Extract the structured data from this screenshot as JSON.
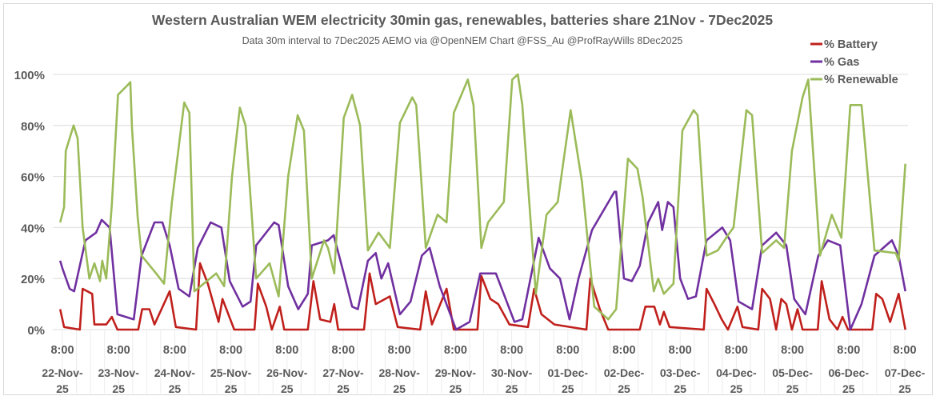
{
  "chart_data": {
    "type": "line",
    "title": "Western Australian WEM electricity 30min gas, renewables, batteries share 21Nov - 7Dec2025",
    "subtitle": "Data 30m interval to 7Dec2025  AEMO via @OpenNEM Chart @FSS_Au @ProfRayWills 8Dec2025",
    "x_unit": "days since 22-Nov-25 8:00",
    "ylim": [
      0,
      100
    ],
    "y_ticks": [
      "0%",
      "20%",
      "40%",
      "60%",
      "80%",
      "100%"
    ],
    "y_tick_values": [
      0,
      20,
      40,
      60,
      80,
      100
    ],
    "x_tick_time": "8:00",
    "x_tick_dates": [
      [
        "22-Nov-",
        "25"
      ],
      [
        "23-Nov-",
        "25"
      ],
      [
        "24-Nov-",
        "25"
      ],
      [
        "25-Nov-",
        "25"
      ],
      [
        "26-Nov-",
        "25"
      ],
      [
        "27-Nov-",
        "25"
      ],
      [
        "28-Nov-",
        "25"
      ],
      [
        "29-Nov-",
        "25"
      ],
      [
        "30-Nov-",
        "25"
      ],
      [
        "01-Dec-",
        "25"
      ],
      [
        "02-Dec-",
        "25"
      ],
      [
        "03-Dec-",
        "25"
      ],
      [
        "04-Dec-",
        "25"
      ],
      [
        "05-Dec-",
        "25"
      ],
      [
        "06-Dec-",
        "25"
      ],
      [
        "07-Dec-",
        "25"
      ]
    ],
    "grid": true,
    "legend_position": "top-right",
    "series": [
      {
        "name": "% Battery",
        "color": "#c0201c",
        "points": [
          [
            -0.04,
            8
          ],
          [
            0.03,
            1
          ],
          [
            0.31,
            0
          ],
          [
            0.36,
            16
          ],
          [
            0.53,
            14
          ],
          [
            0.57,
            2
          ],
          [
            0.78,
            2
          ],
          [
            0.88,
            5
          ],
          [
            0.98,
            0
          ],
          [
            1.35,
            0
          ],
          [
            1.42,
            8
          ],
          [
            1.55,
            8
          ],
          [
            1.64,
            2
          ],
          [
            1.91,
            15
          ],
          [
            2.02,
            1
          ],
          [
            2.38,
            0
          ],
          [
            2.45,
            26
          ],
          [
            2.59,
            18
          ],
          [
            2.78,
            3
          ],
          [
            2.85,
            12
          ],
          [
            3.06,
            0
          ],
          [
            3.42,
            0
          ],
          [
            3.48,
            18
          ],
          [
            3.63,
            9
          ],
          [
            3.73,
            0
          ],
          [
            3.87,
            9
          ],
          [
            3.95,
            0
          ],
          [
            4.37,
            0
          ],
          [
            4.47,
            19
          ],
          [
            4.59,
            4
          ],
          [
            4.77,
            3
          ],
          [
            4.84,
            10
          ],
          [
            4.91,
            0
          ],
          [
            5.37,
            0
          ],
          [
            5.47,
            22
          ],
          [
            5.58,
            10
          ],
          [
            5.83,
            13
          ],
          [
            5.97,
            1
          ],
          [
            6.37,
            0
          ],
          [
            6.47,
            15
          ],
          [
            6.58,
            2
          ],
          [
            6.84,
            16
          ],
          [
            6.97,
            0
          ],
          [
            7.39,
            0
          ],
          [
            7.46,
            21
          ],
          [
            7.62,
            12
          ],
          [
            7.76,
            10
          ],
          [
            7.96,
            2
          ],
          [
            8.29,
            1
          ],
          [
            8.4,
            16
          ],
          [
            8.53,
            6
          ],
          [
            8.76,
            2
          ],
          [
            9.33,
            0
          ],
          [
            9.4,
            20
          ],
          [
            9.57,
            8
          ],
          [
            9.72,
            0
          ],
          [
            10.28,
            0
          ],
          [
            10.38,
            9
          ],
          [
            10.54,
            9
          ],
          [
            10.64,
            2
          ],
          [
            10.71,
            7
          ],
          [
            10.81,
            1
          ],
          [
            11.42,
            0
          ],
          [
            11.47,
            16
          ],
          [
            11.61,
            10
          ],
          [
            11.74,
            4
          ],
          [
            11.85,
            0
          ],
          [
            12.02,
            9
          ],
          [
            12.11,
            1
          ],
          [
            12.39,
            0
          ],
          [
            12.46,
            16
          ],
          [
            12.6,
            12
          ],
          [
            12.71,
            0
          ],
          [
            12.8,
            12
          ],
          [
            12.89,
            10
          ],
          [
            12.99,
            0
          ],
          [
            13.09,
            8
          ],
          [
            13.18,
            0
          ],
          [
            13.45,
            0
          ],
          [
            13.52,
            19
          ],
          [
            13.66,
            4
          ],
          [
            13.8,
            0
          ],
          [
            13.89,
            5
          ],
          [
            13.99,
            0
          ],
          [
            14.42,
            0
          ],
          [
            14.49,
            14
          ],
          [
            14.6,
            12
          ],
          [
            14.74,
            3
          ],
          [
            14.89,
            14
          ],
          [
            15.01,
            0
          ]
        ]
      },
      {
        "name": "% Gas",
        "color": "#7030a0",
        "points": [
          [
            -0.04,
            27
          ],
          [
            0.0,
            24
          ],
          [
            0.13,
            16
          ],
          [
            0.21,
            15
          ],
          [
            0.41,
            35
          ],
          [
            0.6,
            38
          ],
          [
            0.7,
            43
          ],
          [
            0.84,
            40
          ],
          [
            0.98,
            6
          ],
          [
            1.27,
            4
          ],
          [
            1.41,
            29
          ],
          [
            1.64,
            42
          ],
          [
            1.78,
            42
          ],
          [
            1.91,
            33
          ],
          [
            2.07,
            16
          ],
          [
            2.26,
            13
          ],
          [
            2.41,
            32
          ],
          [
            2.64,
            42
          ],
          [
            2.83,
            40
          ],
          [
            2.98,
            19
          ],
          [
            3.21,
            9
          ],
          [
            3.35,
            11
          ],
          [
            3.45,
            33
          ],
          [
            3.77,
            42
          ],
          [
            3.85,
            41
          ],
          [
            4.02,
            17
          ],
          [
            4.2,
            8
          ],
          [
            4.37,
            14
          ],
          [
            4.44,
            33
          ],
          [
            4.73,
            35
          ],
          [
            4.83,
            37
          ],
          [
            5.01,
            22
          ],
          [
            5.16,
            9
          ],
          [
            5.26,
            8
          ],
          [
            5.44,
            27
          ],
          [
            5.58,
            30
          ],
          [
            5.68,
            20
          ],
          [
            5.8,
            26
          ],
          [
            6.01,
            6
          ],
          [
            6.2,
            11
          ],
          [
            6.4,
            29
          ],
          [
            6.54,
            32
          ],
          [
            6.72,
            17
          ],
          [
            7.01,
            0
          ],
          [
            7.25,
            3
          ],
          [
            7.44,
            22
          ],
          [
            7.72,
            22
          ],
          [
            8.05,
            3
          ],
          [
            8.19,
            4
          ],
          [
            8.48,
            36
          ],
          [
            8.68,
            24
          ],
          [
            8.86,
            20
          ],
          [
            9.03,
            4
          ],
          [
            9.19,
            20
          ],
          [
            9.43,
            39
          ],
          [
            9.83,
            54
          ],
          [
            9.86,
            54
          ],
          [
            10.0,
            20
          ],
          [
            10.14,
            19
          ],
          [
            10.28,
            25
          ],
          [
            10.43,
            42
          ],
          [
            10.61,
            50
          ],
          [
            10.68,
            39
          ],
          [
            10.78,
            50
          ],
          [
            10.88,
            48
          ],
          [
            11.0,
            20
          ],
          [
            11.14,
            12
          ],
          [
            11.28,
            13
          ],
          [
            11.47,
            35
          ],
          [
            11.75,
            40
          ],
          [
            11.89,
            35
          ],
          [
            12.04,
            11
          ],
          [
            12.28,
            8
          ],
          [
            12.46,
            33
          ],
          [
            12.71,
            38
          ],
          [
            12.89,
            33
          ],
          [
            13.03,
            12
          ],
          [
            13.23,
            6
          ],
          [
            13.46,
            29
          ],
          [
            13.63,
            35
          ],
          [
            13.85,
            33
          ],
          [
            14.03,
            0
          ],
          [
            14.23,
            10
          ],
          [
            14.46,
            29
          ],
          [
            14.77,
            35
          ],
          [
            14.89,
            29
          ],
          [
            15.01,
            15
          ]
        ]
      },
      {
        "name": "% Renewable",
        "color": "#9bbb59",
        "points": [
          [
            -0.04,
            42
          ],
          [
            0.03,
            48
          ],
          [
            0.06,
            70
          ],
          [
            0.2,
            80
          ],
          [
            0.27,
            75
          ],
          [
            0.36,
            40
          ],
          [
            0.48,
            20
          ],
          [
            0.57,
            26
          ],
          [
            0.67,
            19
          ],
          [
            0.71,
            27
          ],
          [
            0.78,
            20
          ],
          [
            0.88,
            49
          ],
          [
            0.99,
            92
          ],
          [
            1.17,
            96
          ],
          [
            1.21,
            97
          ],
          [
            1.24,
            79
          ],
          [
            1.34,
            44
          ],
          [
            1.41,
            29
          ],
          [
            1.67,
            22
          ],
          [
            1.81,
            18
          ],
          [
            1.95,
            50
          ],
          [
            2.17,
            89
          ],
          [
            2.26,
            85
          ],
          [
            2.35,
            15
          ],
          [
            2.74,
            22
          ],
          [
            2.88,
            17
          ],
          [
            3.02,
            60
          ],
          [
            3.16,
            87
          ],
          [
            3.26,
            80
          ],
          [
            3.45,
            20
          ],
          [
            3.69,
            26
          ],
          [
            3.85,
            13
          ],
          [
            4.02,
            60
          ],
          [
            4.19,
            84
          ],
          [
            4.3,
            78
          ],
          [
            4.44,
            20
          ],
          [
            4.66,
            35
          ],
          [
            4.73,
            32
          ],
          [
            4.84,
            22
          ],
          [
            5.01,
            83
          ],
          [
            5.16,
            92
          ],
          [
            5.3,
            80
          ],
          [
            5.44,
            31
          ],
          [
            5.63,
            38
          ],
          [
            5.83,
            32
          ],
          [
            6.01,
            81
          ],
          [
            6.23,
            91
          ],
          [
            6.3,
            88
          ],
          [
            6.47,
            32
          ],
          [
            6.68,
            45
          ],
          [
            6.84,
            42
          ],
          [
            6.97,
            85
          ],
          [
            7.22,
            98
          ],
          [
            7.32,
            88
          ],
          [
            7.46,
            32
          ],
          [
            7.58,
            42
          ],
          [
            7.86,
            50
          ],
          [
            8.01,
            98
          ],
          [
            8.11,
            100
          ],
          [
            8.19,
            88
          ],
          [
            8.43,
            14
          ],
          [
            8.62,
            45
          ],
          [
            8.82,
            50
          ],
          [
            9.05,
            86
          ],
          [
            9.25,
            58
          ],
          [
            9.47,
            9
          ],
          [
            9.72,
            4
          ],
          [
            9.86,
            8
          ],
          [
            10.07,
            67
          ],
          [
            10.24,
            63
          ],
          [
            10.33,
            52
          ],
          [
            10.53,
            15
          ],
          [
            10.61,
            20
          ],
          [
            10.71,
            14
          ],
          [
            10.88,
            18
          ],
          [
            11.04,
            78
          ],
          [
            11.24,
            86
          ],
          [
            11.31,
            84
          ],
          [
            11.47,
            29
          ],
          [
            11.67,
            31
          ],
          [
            11.85,
            37
          ],
          [
            11.95,
            40
          ],
          [
            12.18,
            86
          ],
          [
            12.28,
            84
          ],
          [
            12.46,
            30
          ],
          [
            12.71,
            35
          ],
          [
            12.85,
            32
          ],
          [
            12.99,
            70
          ],
          [
            13.18,
            91
          ],
          [
            13.28,
            98
          ],
          [
            13.49,
            29
          ],
          [
            13.7,
            45
          ],
          [
            13.87,
            36
          ],
          [
            14.03,
            88
          ],
          [
            14.23,
            88
          ],
          [
            14.46,
            31
          ],
          [
            14.84,
            30
          ],
          [
            14.89,
            27
          ],
          [
            15.01,
            65
          ]
        ]
      }
    ]
  }
}
